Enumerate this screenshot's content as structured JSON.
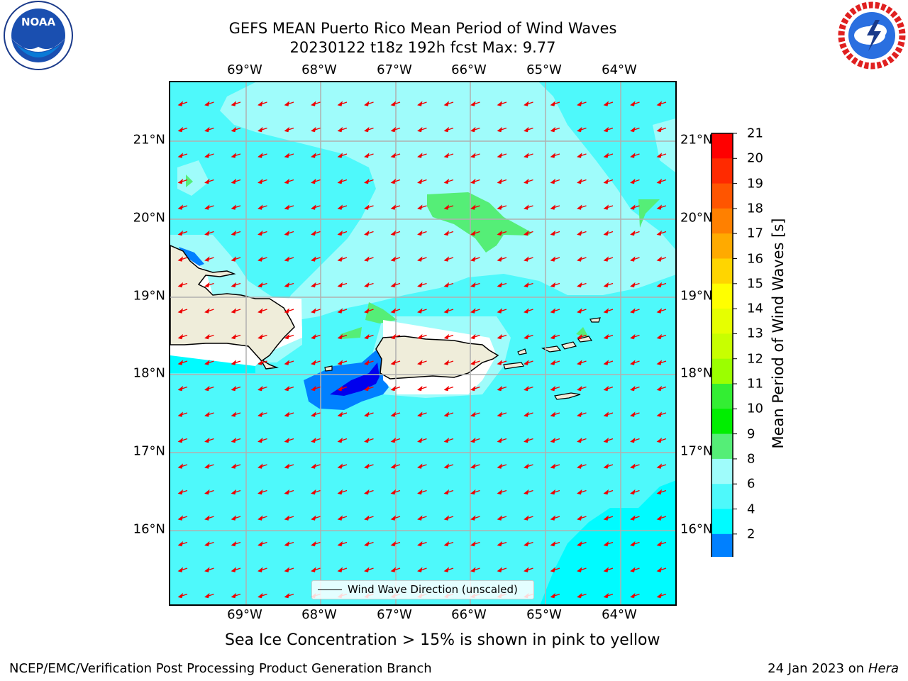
{
  "title_line1": "GEFS MEAN Puerto Rico Mean Period of Wind Waves",
  "title_line2": "20230122 t18z 192h fcst   Max: 9.77",
  "longitude_ticks": [
    "69°W",
    "68°W",
    "67°W",
    "66°W",
    "65°W",
    "64°W"
  ],
  "latitude_ticks": [
    "21°N",
    "20°N",
    "19°N",
    "18°N",
    "17°N",
    "16°N"
  ],
  "legend_label": "Wind Wave Direction (unscaled)",
  "colorbar": {
    "title": "Mean Period of Wind Waves [s]",
    "ticks": [
      "21",
      "20",
      "19",
      "18",
      "17",
      "16",
      "15",
      "14",
      "13",
      "12",
      "11",
      "10",
      "9",
      "8",
      "6",
      "4",
      "2"
    ],
    "colors": [
      "#ff0000",
      "#ff2a00",
      "#ff5500",
      "#ff8000",
      "#ffaa00",
      "#ffd500",
      "#ffff00",
      "#e6ff00",
      "#c8ff00",
      "#9bff00",
      "#33ee33",
      "#00ee00",
      "#55ee77",
      "#9ffcfb",
      "#4ef9fb",
      "#00fbff",
      "#0080ff"
    ],
    "extend_color": "#0000ee"
  },
  "ice_note": "Sea Ice Concentration > 15% is shown in pink to yellow",
  "footer_left": "NCEP/EMC/Verification Post Processing Product Generation Branch",
  "footer_date": "24 Jan 2023 on",
  "footer_machine": "Hera",
  "noaa_logo_text": "NOAA",
  "colors": {
    "ocean_base": "#4ef9fb",
    "ocean_light": "#9ffcfb",
    "ocean_deep": "#00fbff",
    "green": "#55ee77",
    "blue": "#0080ff",
    "dark_blue": "#0000ee",
    "land": "#efedda",
    "arrow": "#ee0000",
    "grid": "#b0b0b0"
  }
}
